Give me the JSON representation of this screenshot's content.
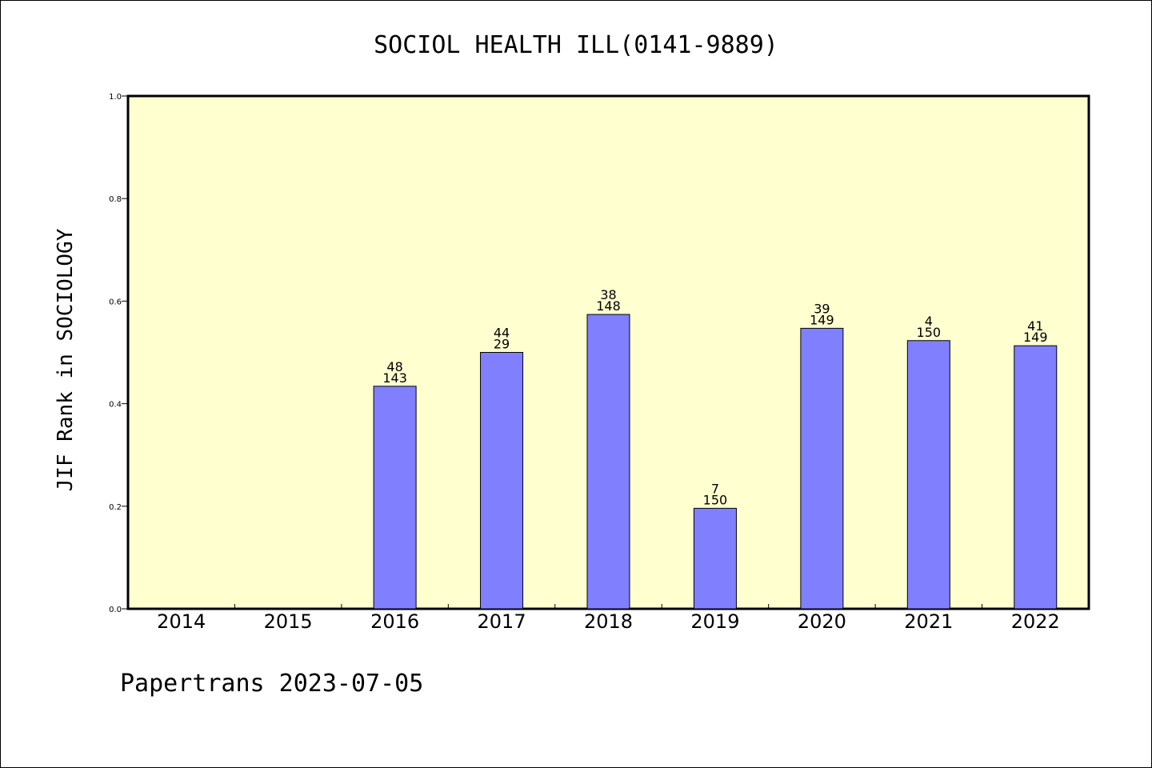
{
  "footer": "Papertrans 2023-07-05",
  "chart_data": {
    "type": "bar",
    "title": "SOCIOL HEALTH ILL(0141-9889)",
    "xlabel": "",
    "ylabel": "JIF Rank in SOCIOLOGY",
    "ylim": [
      0,
      1.0
    ],
    "yticks": [
      "0.0",
      "0.2",
      "0.4",
      "0.6",
      "0.8",
      "1.0"
    ],
    "grid": false,
    "categories": [
      "2014",
      "2015",
      "2016",
      "2017",
      "2018",
      "2019",
      "2020",
      "2021",
      "2022"
    ],
    "values": [
      null,
      null,
      0.434,
      0.5,
      0.574,
      0.196,
      0.547,
      0.523,
      0.513
    ],
    "rank_labels": [
      "",
      "",
      "48",
      "44",
      "38",
      "7",
      "39",
      "4",
      "41"
    ],
    "total_labels": [
      "",
      "",
      "143",
      "29",
      "148",
      "150",
      "149",
      "150",
      "149"
    ],
    "colors": {
      "bar": "#8080ff",
      "plot_background": "#ffffd0"
    }
  }
}
